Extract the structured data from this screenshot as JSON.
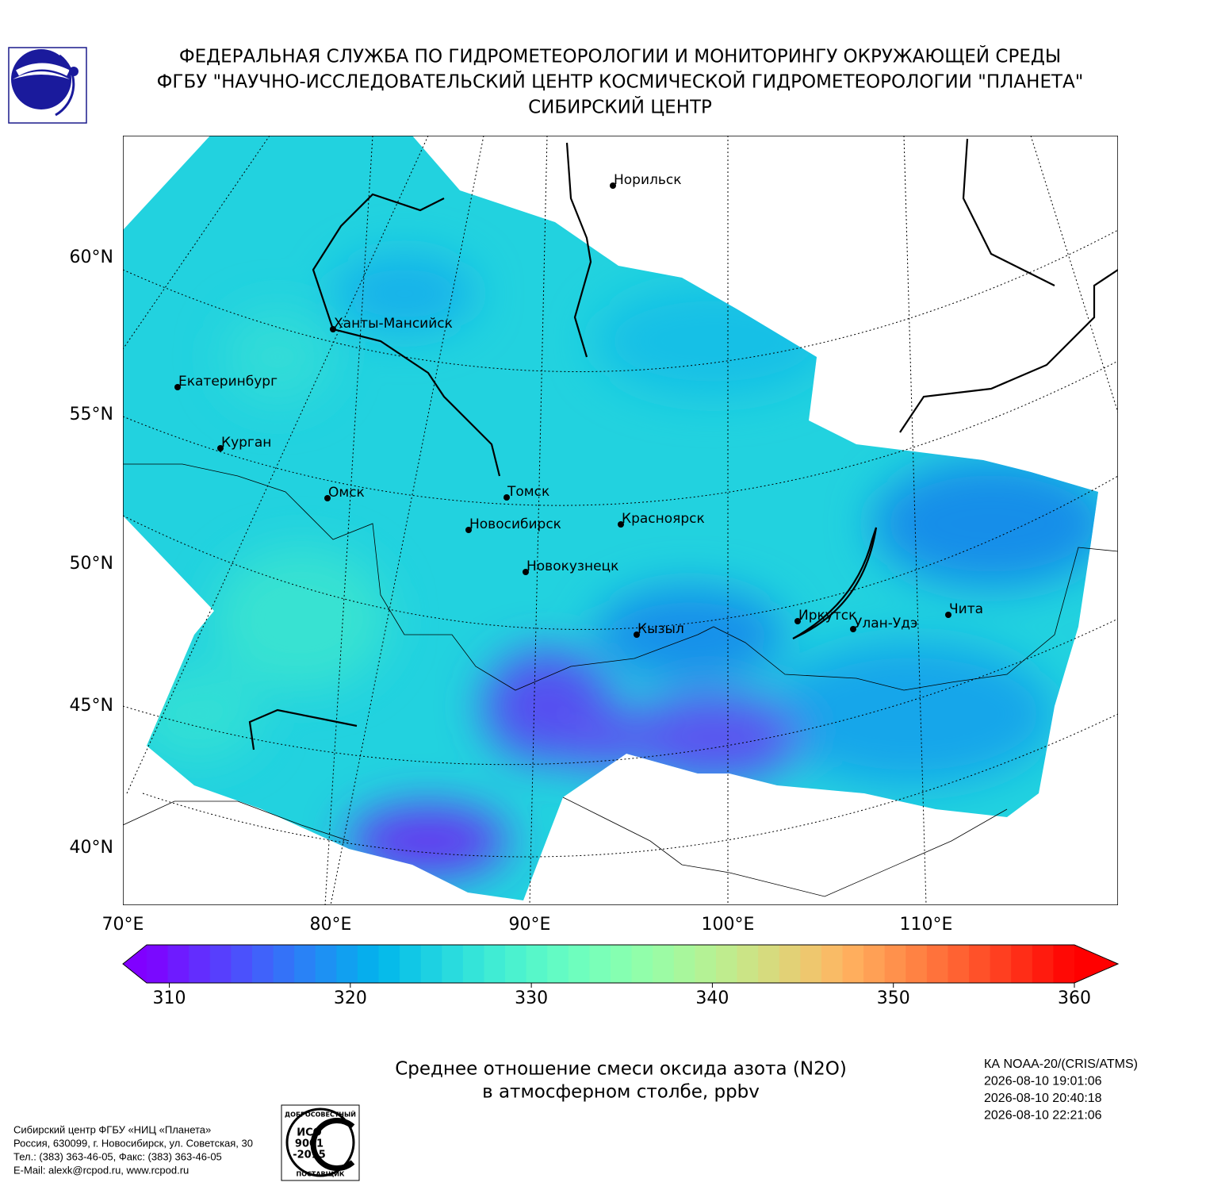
{
  "header": {
    "lines": [
      "ФЕДЕРАЛЬНАЯ СЛУЖБА ПО ГИДРОМЕТЕОРОЛОГИИ И МОНИТОРИНГУ ОКРУЖАЮЩЕЙ СРЕДЫ",
      "ФГБУ \"НАУЧНО-ИССЛЕДОВАТЕЛЬСКИЙ ЦЕНТР КОСМИЧЕСКОЙ ГИДРОМЕТЕОРОЛОГИИ \"ПЛАНЕТА\"",
      "СИБИРСКИЙ ЦЕНТР"
    ]
  },
  "map": {
    "lat_labels": [
      "60°N",
      "55°N",
      "50°N",
      "45°N",
      "40°N"
    ],
    "lon_labels": [
      "70°E",
      "80°E",
      "90°E",
      "100°E",
      "110°E"
    ],
    "cities": [
      "Норильск",
      "Ханты-Мансийск",
      "Екатеринбург",
      "Курган",
      "Омск",
      "Томск",
      "Новосибирск",
      "Красноярск",
      "Новокузнецк",
      "Кызыл",
      "Иркутск",
      "Улан-Удэ",
      "Чита"
    ]
  },
  "colorbar": {
    "range": [
      308.75,
      360
    ],
    "ticks": [
      310,
      320,
      330,
      340,
      350,
      360
    ],
    "extend": "both"
  },
  "caption": {
    "lines": [
      "Среднее отношение смеси оксида азота (N2O)",
      "в атмосферном столбе, ppbv"
    ]
  },
  "satellite": {
    "lines": [
      "КА NOAA-20/(CRIS/ATMS)",
      "2026-08-10 19:01:06",
      "2026-08-10 20:40:18",
      "2026-08-10 22:21:06"
    ]
  },
  "footer": {
    "lines": [
      "Сибирский центр ФГБУ «НИЦ «Планета»",
      "Россия, 630099, г. Новосибирск, ул. Советская, 30",
      "Тел.: (383) 363-46-05, Факс: (383) 363-46-05",
      "E-Mail: alexk@rcpod.ru, www.rcpod.ru"
    ]
  },
  "badge": {
    "top": "ДОБРОСОВЕСТНЫЙ",
    "lines": [
      "ИСО",
      "9001",
      "-2015"
    ],
    "bottom": "ПОСТАВЩИК"
  }
}
